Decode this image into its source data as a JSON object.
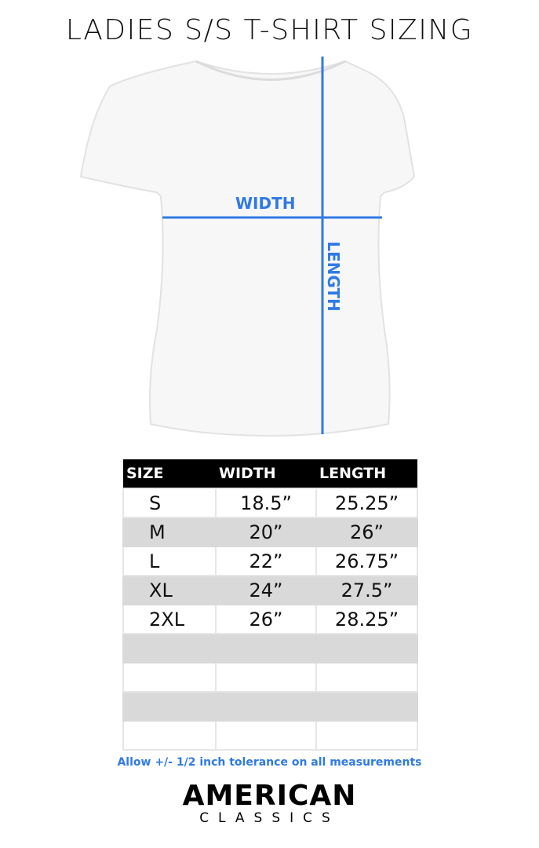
{
  "title": "LADIES S/S T-SHIRT SIZING",
  "diagram": {
    "width_label": "WIDTH",
    "length_label": "LENGTH",
    "line_color": "#2f7ae5"
  },
  "table": {
    "headers": [
      "SIZE",
      "WIDTH",
      "LENGTH"
    ],
    "rows": [
      [
        "S",
        "18.5”",
        "25.25”"
      ],
      [
        "M",
        "20”",
        "26”"
      ],
      [
        "L",
        "22”",
        "26.75”"
      ],
      [
        "XL",
        "24”",
        "27.5”"
      ],
      [
        "2XL",
        "26”",
        "28.25”"
      ],
      [
        "",
        "",
        ""
      ],
      [
        "",
        "",
        ""
      ],
      [
        "",
        "",
        ""
      ],
      [
        "",
        "",
        ""
      ]
    ]
  },
  "note": "Allow +/- 1/2 inch tolerance on all measurements",
  "logo": {
    "line1": "AMERICAN",
    "line2": "CLASSICS"
  }
}
